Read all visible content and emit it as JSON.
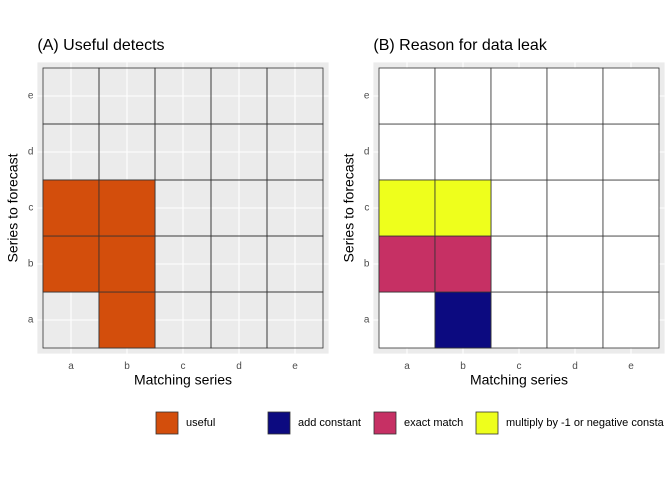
{
  "chart_data": [
    {
      "type": "tile",
      "title": "(A) Useful detects",
      "x_label": "Matching series",
      "y_label": "Series to forecast",
      "x_categories": [
        "a",
        "b",
        "c",
        "d",
        "e"
      ],
      "y_categories": [
        "a",
        "b",
        "c",
        "d",
        "e"
      ],
      "empty_fill": null,
      "grid": true,
      "series": [
        {
          "name": "useful",
          "color": "#d34e0c",
          "cells": [
            {
              "x": "a",
              "y": "b"
            },
            {
              "x": "a",
              "y": "c"
            },
            {
              "x": "b",
              "y": "a"
            },
            {
              "x": "b",
              "y": "b"
            },
            {
              "x": "b",
              "y": "c"
            }
          ]
        }
      ]
    },
    {
      "type": "tile",
      "title": "(B) Reason for data leak",
      "x_label": "Matching series",
      "y_label": "Series to forecast",
      "x_categories": [
        "a",
        "b",
        "c",
        "d",
        "e"
      ],
      "y_categories": [
        "a",
        "b",
        "c",
        "d",
        "e"
      ],
      "empty_fill": "#ffffff",
      "grid": true,
      "series": [
        {
          "name": "add constant",
          "color": "#0c0a80",
          "cells": [
            {
              "x": "b",
              "y": "a"
            }
          ]
        },
        {
          "name": "exact match",
          "color": "#c63064",
          "cells": [
            {
              "x": "a",
              "y": "b"
            },
            {
              "x": "b",
              "y": "b"
            }
          ]
        },
        {
          "name": "multiply by -1 or negative consta",
          "color": "#eeff1c",
          "cells": [
            {
              "x": "a",
              "y": "c"
            },
            {
              "x": "b",
              "y": "c"
            }
          ]
        }
      ]
    }
  ]
}
